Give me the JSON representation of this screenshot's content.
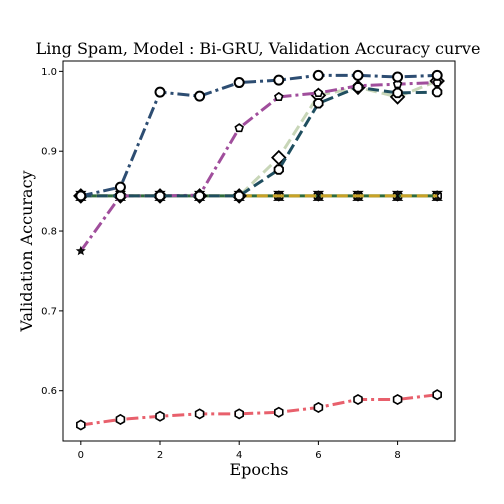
{
  "chart_data": {
    "type": "line",
    "title": "Ling Spam, Model : Bi-GRU, Validation Accuracy curve",
    "xlabel": "Epochs",
    "ylabel": "Validation Accuracy",
    "xlim": [
      -0.45,
      9.45
    ],
    "ylim": [
      0.537,
      1.013
    ],
    "xticks": [
      0,
      2,
      4,
      6,
      8
    ],
    "yticks": [
      0.6,
      0.7,
      0.8,
      0.9,
      1.0
    ],
    "ytick_labels": [
      "0.6",
      "0.7",
      "0.8",
      "0.9",
      "1.0"
    ],
    "grid": false,
    "legend": "none",
    "x": [
      0,
      1,
      2,
      3,
      4,
      5,
      6,
      7,
      8,
      9
    ],
    "series": [
      {
        "color": "#e8606c",
        "dash": "dashdot",
        "marker": "hexagon",
        "values": [
          0.557,
          0.564,
          0.568,
          0.571,
          0.571,
          0.573,
          0.579,
          0.589,
          0.589,
          0.595
        ]
      },
      {
        "color": "#b3c97d",
        "dash": "dashed",
        "marker": "hexagon",
        "values": [
          0.844,
          0.844,
          0.844,
          0.844,
          0.844,
          0.844,
          0.844,
          0.844,
          0.844,
          0.844
        ]
      },
      {
        "color": "#2e6b3a",
        "dash": "solid",
        "marker": "bowtie",
        "values": [
          0.844,
          0.844,
          0.844,
          0.844,
          0.844,
          0.844,
          0.844,
          0.844,
          0.844,
          0.844
        ]
      },
      {
        "color": "#c9a227",
        "dash": "dashed",
        "marker": "none",
        "values": [
          0.844,
          0.844,
          0.844,
          0.844,
          0.844,
          0.844,
          0.844,
          0.844,
          0.844,
          0.844
        ]
      },
      {
        "color": "#c8d6b8",
        "dash": "dashed",
        "marker": "diamond",
        "values": [
          0.844,
          0.844,
          0.844,
          0.844,
          0.844,
          0.892,
          0.97,
          0.98,
          0.968,
          0.988
        ]
      },
      {
        "color": "#a04e9c",
        "dash": "dashdot",
        "marker": "pentagon",
        "values": [
          0.775,
          0.844,
          0.844,
          0.845,
          0.929,
          0.968,
          0.973,
          0.982,
          0.984,
          0.986
        ]
      },
      {
        "color": "#1f4e5f",
        "dash": "dashed",
        "marker": "octagon",
        "values": [
          0.844,
          0.844,
          0.844,
          0.844,
          0.844,
          0.877,
          0.96,
          0.98,
          0.973,
          0.974
        ]
      },
      {
        "color": "#2d4d72",
        "dash": "dashdot",
        "marker": "circle",
        "values": [
          0.844,
          0.855,
          0.974,
          0.969,
          0.986,
          0.989,
          0.995,
          0.995,
          0.993,
          0.995
        ]
      }
    ]
  }
}
